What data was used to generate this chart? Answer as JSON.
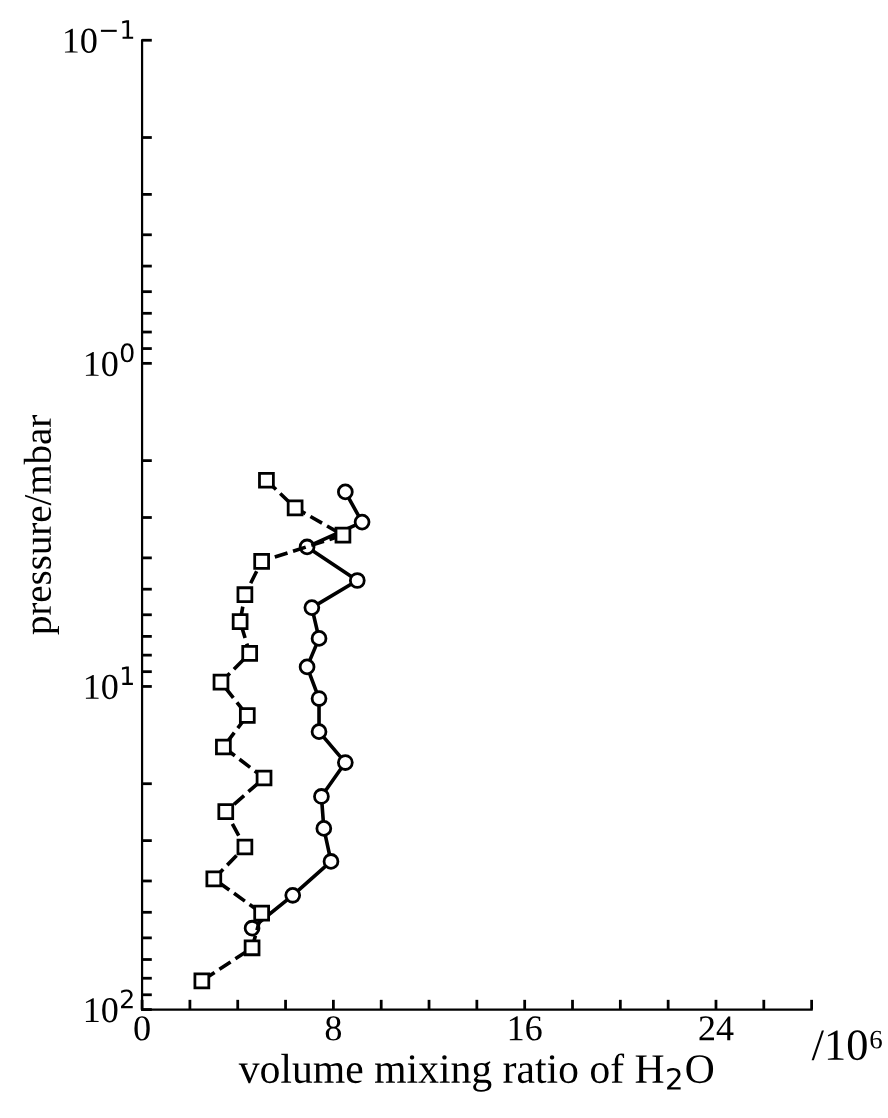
{
  "chart_data": {
    "type": "line",
    "xlabel": "volume mixing ratio of H$_{2}$O",
    "ylabel": "pressure/mbar",
    "annotations": [
      "/10⁶"
    ],
    "log": "y",
    "grid": false,
    "legend": false,
    "xlim": [
      0,
      28
    ],
    "xticks": [
      0,
      {
        "value": 2,
        "label": null
      },
      {
        "value": 4,
        "label": null
      },
      {
        "value": 6,
        "label": null
      },
      8,
      {
        "value": 10,
        "label": null
      },
      {
        "value": 12,
        "label": null
      },
      {
        "value": 14,
        "label": null
      },
      16,
      {
        "value": 18,
        "label": null
      },
      {
        "value": 20,
        "label": null
      },
      {
        "value": 22,
        "label": null
      },
      24,
      {
        "value": 26,
        "label": null
      },
      {
        "value": 28,
        "label": null
      }
    ],
    "ylim": [
      100,
      0.1
    ],
    "yticks": [
      {
        "value": 0.1,
        "label": "10$^{−1}$"
      },
      {
        "value": 0.2,
        "label": null
      },
      {
        "value": 0.3,
        "label": null
      },
      {
        "value": 0.4,
        "label": null
      },
      {
        "value": 0.5,
        "label": null
      },
      {
        "value": 0.6,
        "label": null
      },
      {
        "value": 0.7,
        "label": null
      },
      {
        "value": 0.8,
        "label": null
      },
      {
        "value": 0.9,
        "label": null
      },
      {
        "value": 1,
        "label": "10$^{0}$"
      },
      {
        "value": 2,
        "label": null
      },
      {
        "value": 3,
        "label": null
      },
      {
        "value": 4,
        "label": null
      },
      {
        "value": 5,
        "label": null
      },
      {
        "value": 6,
        "label": null
      },
      {
        "value": 7,
        "label": null
      },
      {
        "value": 8,
        "label": null
      },
      {
        "value": 9,
        "label": null
      },
      {
        "value": 10,
        "label": "10$^{1}$"
      },
      {
        "value": 20,
        "label": null
      },
      {
        "value": 30,
        "label": null
      },
      {
        "value": 40,
        "label": null
      },
      {
        "value": 50,
        "label": null
      },
      {
        "value": 60,
        "label": null
      },
      {
        "value": 70,
        "label": null
      },
      {
        "value": 80,
        "label": null
      },
      {
        "value": 90,
        "label": null
      },
      {
        "value": 100,
        "label": "10$^{2}$"
      }
    ],
    "series": [
      {
        "color": "#000000",
        "marker": "circle",
        "line_style": "solid",
        "x": [
          8.5,
          9.2,
          6.9,
          9.0,
          7.1,
          7.4,
          6.9,
          7.4,
          7.4,
          8.5,
          7.5,
          7.6,
          7.9,
          6.3,
          4.6
        ],
        "values": [
          2.5,
          3.1,
          3.7,
          4.7,
          5.7,
          7.1,
          8.7,
          10.9,
          13.8,
          17.2,
          21.9,
          27.5,
          34.8,
          44.3,
          56
        ]
      },
      {
        "color": "#000000",
        "marker": "square",
        "line_style": "dashed",
        "x": [
          5.2,
          6.4,
          8.4,
          5.0,
          4.3,
          4.1,
          4.5,
          3.3,
          4.4,
          3.4,
          5.1,
          3.5,
          4.3,
          3.0,
          5.0,
          4.6,
          2.5
        ],
        "values": [
          2.3,
          2.8,
          3.4,
          4.1,
          5.2,
          6.3,
          7.9,
          9.7,
          12.3,
          15.4,
          19.2,
          24.4,
          31.4,
          39.4,
          50.3,
          64.4,
          81.5
        ]
      }
    ]
  }
}
